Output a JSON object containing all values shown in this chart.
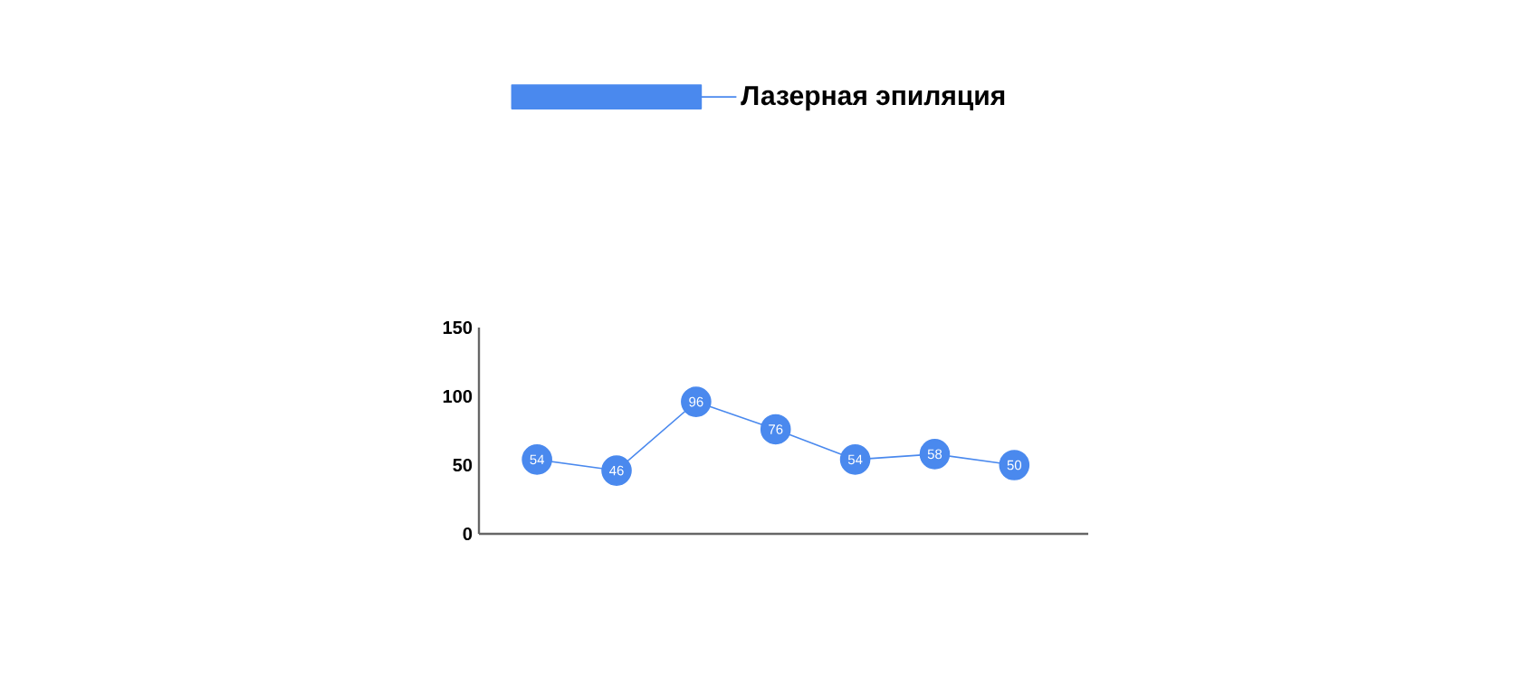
{
  "chart_data": {
    "type": "line",
    "categories": [
      null,
      null,
      null,
      null,
      null,
      null,
      null
    ],
    "series": [
      {
        "name": "Лазерная эпиляция",
        "color": "#4a89ee",
        "values": [
          54,
          46,
          96,
          76,
          54,
          58,
          50
        ]
      }
    ],
    "ylim": [
      0,
      150
    ],
    "yticks": [
      0,
      50,
      100,
      150
    ],
    "data_labels": true,
    "legend": "top",
    "marker": "circle",
    "grid": false,
    "line_style": "solid"
  }
}
